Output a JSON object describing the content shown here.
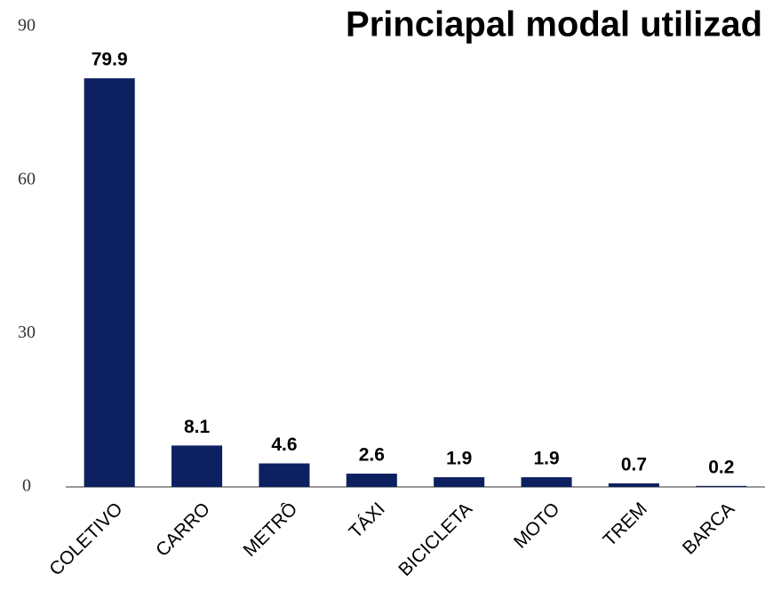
{
  "chart_data": {
    "type": "bar",
    "title": "Princiapal modal utilizad",
    "categories": [
      "COLETIVO",
      "CARRO",
      "METRÔ",
      "TÁXI",
      "BICICLETA",
      "MOTO",
      "TREM",
      "BARCA"
    ],
    "values": [
      79.9,
      8.1,
      4.6,
      2.6,
      1.9,
      1.9,
      0.7,
      0.2
    ],
    "color": "#0d2060",
    "ylim": [
      0,
      90
    ],
    "yticks": [
      0,
      30,
      60,
      90
    ],
    "grid": false
  }
}
